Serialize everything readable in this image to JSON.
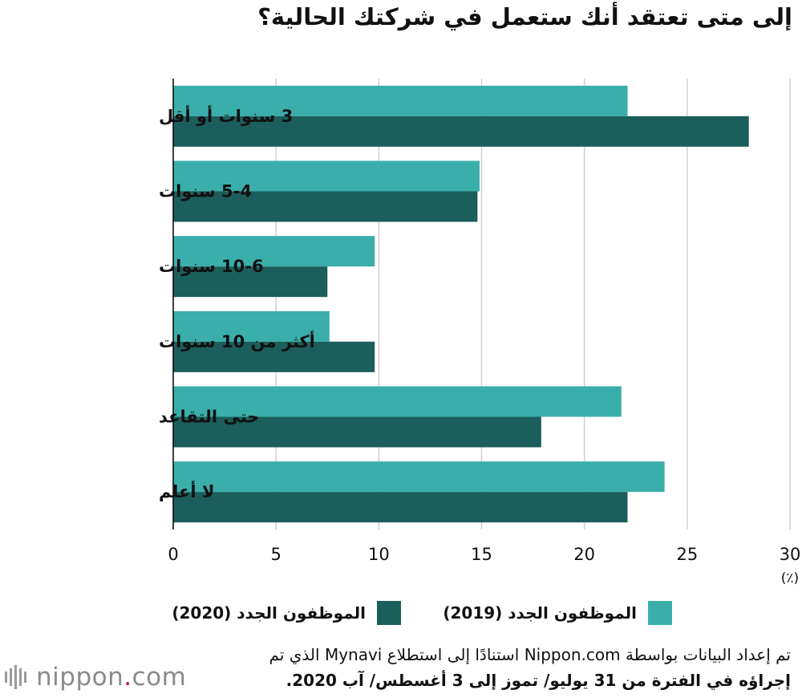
{
  "title": "إلى متى تعتقد أنك ستعمل في شركتك الحالية؟",
  "unit_label": "(٪)",
  "colors": {
    "series_2019": "#3aaeaa",
    "series_2020": "#1b5e5b",
    "grid": "#d0d0d0",
    "axis": "#000000"
  },
  "legend": {
    "label_2019": "الموظفون الجدد (2019)",
    "label_2020": "الموظفون الجدد (2020)"
  },
  "source": {
    "line1": "تم إعداد البيانات بواسطة Nippon.com استنادًا إلى استطلاع Mynavi الذي تم",
    "line2": "إجراؤه في الفترة من 31 يوليو/ تموز إلى 3 أغسطس/ آب 2020."
  },
  "logo": {
    "text_main": "nippon",
    "text_dot": ".",
    "text_tld": "com"
  },
  "chart_data": {
    "type": "bar",
    "orientation": "horizontal",
    "title": "إلى متى تعتقد أنك ستعمل في شركتك الحالية؟",
    "categories": [
      "3 سنوات أو أقل",
      "5-4 سنوات",
      "10-6 سنوات",
      "أكثر من 10 سنوات",
      "حتى التقاعد",
      "لا أعلم"
    ],
    "series": [
      {
        "name": "الموظفون الجدد (2019)",
        "color": "#3aaeaa",
        "values": [
          22.1,
          14.9,
          9.8,
          7.6,
          21.8,
          23.9
        ]
      },
      {
        "name": "الموظفون الجدد (2020)",
        "color": "#1b5e5b",
        "values": [
          28.0,
          14.8,
          7.5,
          9.8,
          17.9,
          22.1
        ]
      }
    ],
    "xlim": [
      0,
      30
    ],
    "xticks": [
      0,
      5,
      10,
      15,
      20,
      25,
      30
    ],
    "xlabel": "(٪)",
    "grid": true,
    "legend_position": "bottom"
  }
}
